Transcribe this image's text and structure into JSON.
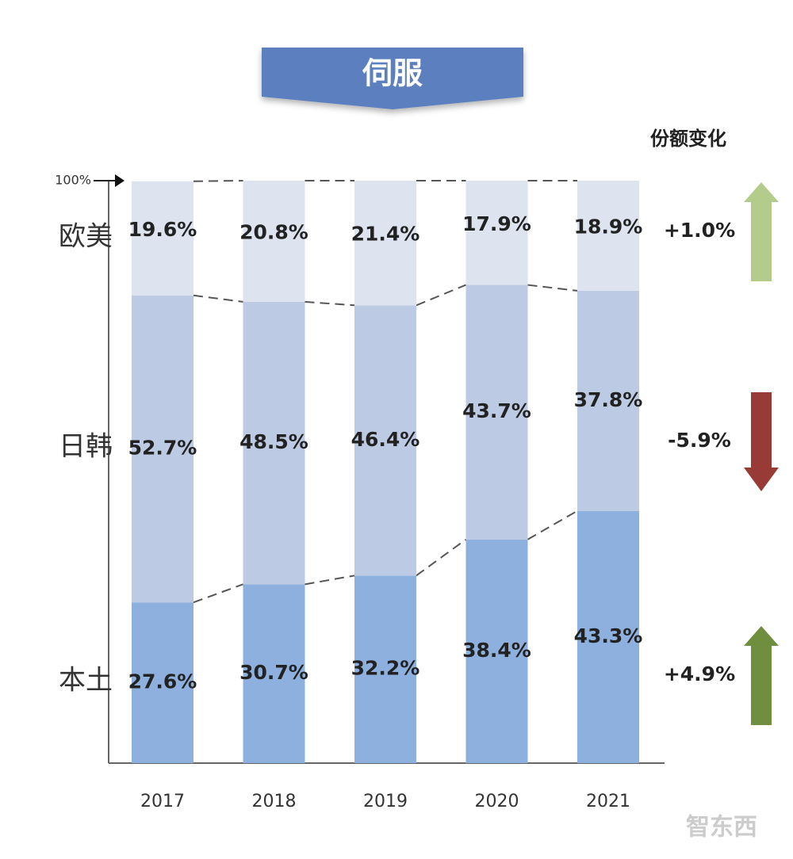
{
  "chart_data": {
    "type": "stacked_bar",
    "title": "伺服",
    "change_title": "份额变化",
    "watermark": "智东西",
    "categories": [
      "2017",
      "2018",
      "2019",
      "2020",
      "2021"
    ],
    "ylim": [
      0,
      100
    ],
    "yticks": [
      {
        "value": 100,
        "label": "100%"
      }
    ],
    "series": [
      {
        "name": "本土",
        "color": "#8eb0de",
        "values": [
          27.6,
          30.7,
          32.2,
          38.4,
          43.3
        ],
        "value_labels": [
          "27.6%",
          "30.7%",
          "32.2%",
          "38.4%",
          "43.3%"
        ],
        "change": 4.9,
        "change_label": "+4.9%",
        "change_color": "#6f8f3e"
      },
      {
        "name": "日韩",
        "color": "#bccbe3",
        "values": [
          52.7,
          48.5,
          46.4,
          43.7,
          37.8
        ],
        "value_labels": [
          "52.7%",
          "48.5%",
          "46.4%",
          "43.7%",
          "37.8%"
        ],
        "change": -5.9,
        "change_label": "-5.9%",
        "change_color": "#983a36"
      },
      {
        "name": "欧美",
        "color": "#dde4f0",
        "values": [
          19.6,
          20.8,
          21.4,
          17.9,
          18.9
        ],
        "value_labels": [
          "19.6%",
          "20.8%",
          "21.4%",
          "17.9%",
          "18.9%"
        ],
        "change": 1.0,
        "change_label": "+1.0%",
        "change_color": "#b3cc8c"
      }
    ]
  }
}
